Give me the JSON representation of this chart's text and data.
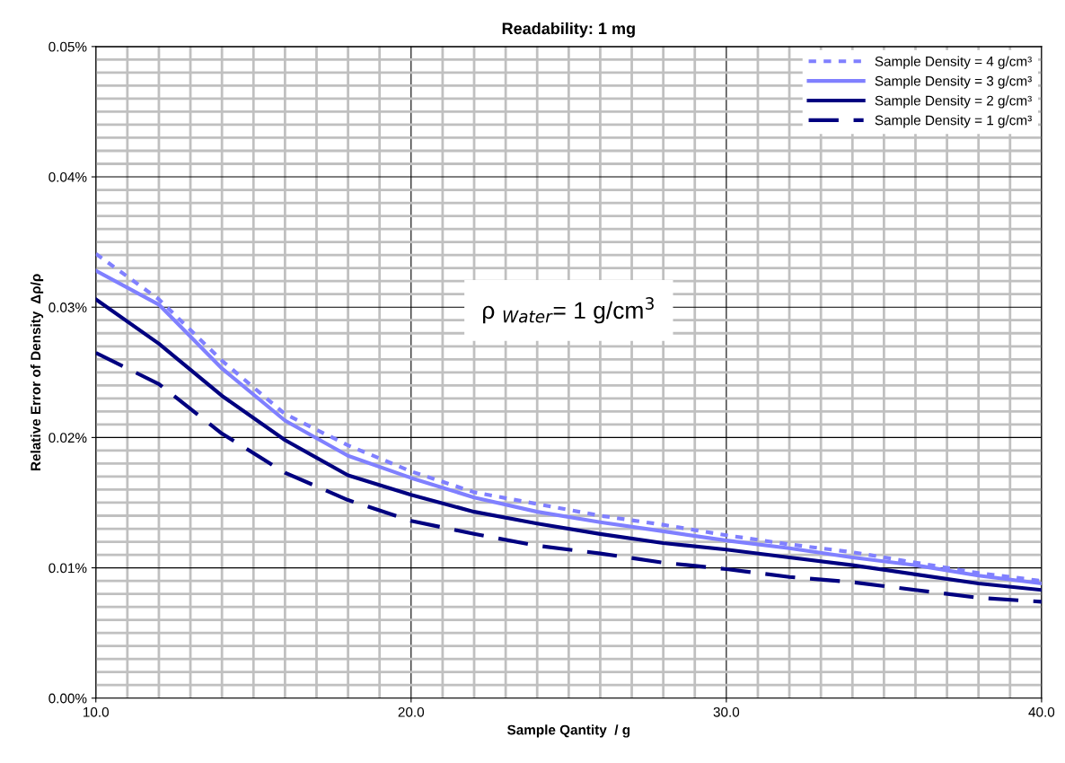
{
  "chart_data": {
    "type": "line",
    "title": "Readability: 1 mg",
    "xlabel": "Sample Qantity  / g",
    "ylabel": "Relative Error of Density  Δρ/ρ",
    "x": [
      10,
      12,
      14,
      16,
      18,
      20,
      22,
      24,
      26,
      28,
      30,
      32,
      34,
      36,
      38,
      40
    ],
    "series": [
      {
        "name": "Sample Density = 4 g/cm³",
        "color": "#8080ff",
        "line_style": "dotted",
        "values": [
          0.0341,
          0.0306,
          0.0259,
          0.0218,
          0.0194,
          0.0174,
          0.0158,
          0.0149,
          0.014,
          0.0133,
          0.0125,
          0.0118,
          0.0112,
          0.0104,
          0.0096,
          0.009
        ]
      },
      {
        "name": "Sample Density = 3 g/cm³",
        "color": "#8080ff",
        "line_style": "solid",
        "values": [
          0.0328,
          0.0302,
          0.0253,
          0.0213,
          0.0186,
          0.0169,
          0.0154,
          0.0143,
          0.0135,
          0.0128,
          0.0121,
          0.0115,
          0.0108,
          0.0102,
          0.0094,
          0.0088
        ]
      },
      {
        "name": "Sample Density = 2 g/cm³",
        "color": "#000080",
        "line_style": "solid",
        "values": [
          0.0306,
          0.0272,
          0.0232,
          0.0198,
          0.0171,
          0.0156,
          0.0143,
          0.0134,
          0.0126,
          0.0119,
          0.0114,
          0.0108,
          0.0102,
          0.0095,
          0.0088,
          0.0083
        ]
      },
      {
        "name": "Sample Density = 1 g/cm³",
        "color": "#000080",
        "line_style": "dashed",
        "values": [
          0.0265,
          0.0241,
          0.0203,
          0.0173,
          0.0152,
          0.0136,
          0.0126,
          0.0117,
          0.0111,
          0.0104,
          0.0099,
          0.0093,
          0.0089,
          0.0083,
          0.0077,
          0.0074
        ]
      }
    ],
    "xlim": [
      10,
      40
    ],
    "xticks": [
      {
        "value": 10,
        "label": "10.0"
      },
      {
        "value": 20,
        "label": "20.0"
      },
      {
        "value": 30,
        "label": "30.0"
      },
      {
        "value": 40,
        "label": "40.0"
      }
    ],
    "ylim": [
      0,
      0.05
    ],
    "yticks": [
      {
        "value": 0,
        "label": "0.00%"
      },
      {
        "value": 0.01,
        "label": "0.01%"
      },
      {
        "value": 0.02,
        "label": "0.02%"
      },
      {
        "value": 0.03,
        "label": "0.03%"
      },
      {
        "value": 0.04,
        "label": "0.04%"
      },
      {
        "value": 0.05,
        "label": "0.05%"
      }
    ],
    "grid": true,
    "legend": "top right",
    "marker": "none",
    "annotations": [
      "ρ $_{Water}$= 1 g/cm$^{3}$"
    ]
  }
}
